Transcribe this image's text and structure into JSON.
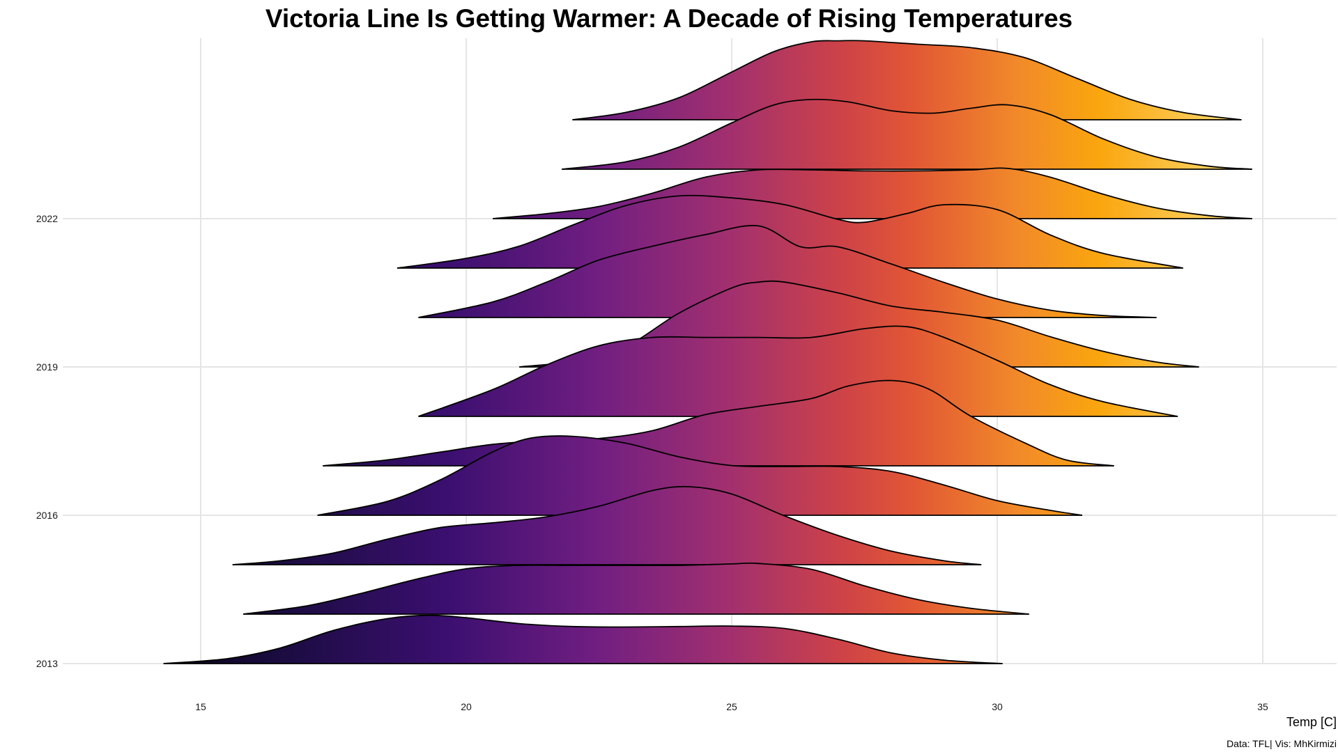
{
  "chart_data": {
    "type": "ridgeline",
    "title": "Victoria Line Is Getting Warmer: A Decade of Rising Temperatures",
    "xlabel": "Temp [C]",
    "ylabel": "",
    "caption": "Data: TFL| Vis: MhKirmizi",
    "xlim": [
      12.5,
      36.5
    ],
    "xticks": [
      15,
      20,
      25,
      30,
      35
    ],
    "ytick_labels": [
      {
        "label": "2013",
        "index": 0
      },
      {
        "label": "2016",
        "index": 3
      },
      {
        "label": "2019",
        "index": 6
      },
      {
        "label": "2022",
        "index": 9
      }
    ],
    "color_scale": "inferno (by temperature)",
    "grid": true,
    "ridges": [
      {
        "index": 0,
        "x": [
          14.3,
          15.5,
          16.5,
          17.5,
          18.5,
          19.3,
          20.0,
          21.0,
          22.0,
          23.0,
          24.0,
          25.0,
          26.0,
          27.0,
          28.0,
          29.0,
          30.1
        ],
        "y": [
          0.0,
          0.1,
          0.32,
          0.68,
          0.92,
          0.99,
          0.94,
          0.82,
          0.76,
          0.75,
          0.76,
          0.77,
          0.72,
          0.5,
          0.22,
          0.07,
          0.0
        ]
      },
      {
        "index": 1,
        "x": [
          15.8,
          17.0,
          18.0,
          19.0,
          20.0,
          21.0,
          22.0,
          23.0,
          24.0,
          25.0,
          25.5,
          26.5,
          27.5,
          28.5,
          29.5,
          30.6
        ],
        "y": [
          0.0,
          0.17,
          0.42,
          0.7,
          0.93,
          1.0,
          1.0,
          1.0,
          1.0,
          1.03,
          1.04,
          0.92,
          0.58,
          0.3,
          0.12,
          0.0
        ]
      },
      {
        "index": 2,
        "x": [
          15.6,
          16.5,
          17.5,
          18.5,
          19.5,
          20.5,
          21.5,
          22.5,
          23.5,
          24.2,
          25.0,
          26.0,
          27.0,
          28.0,
          29.0,
          29.7
        ],
        "y": [
          0.0,
          0.08,
          0.24,
          0.52,
          0.76,
          0.86,
          0.98,
          1.2,
          1.52,
          1.6,
          1.45,
          1.0,
          0.6,
          0.28,
          0.08,
          0.0
        ]
      },
      {
        "index": 3,
        "x": [
          17.2,
          18.5,
          19.5,
          20.5,
          21.2,
          22.0,
          23.0,
          24.0,
          25.0,
          26.0,
          27.0,
          28.0,
          29.0,
          30.0,
          31.0,
          31.6
        ],
        "y": [
          0.0,
          0.28,
          0.72,
          1.3,
          1.58,
          1.62,
          1.48,
          1.2,
          1.02,
          1.0,
          1.0,
          0.9,
          0.62,
          0.3,
          0.1,
          0.0
        ]
      },
      {
        "index": 4,
        "x": [
          17.3,
          18.5,
          19.5,
          20.5,
          21.5,
          22.5,
          23.5,
          24.5,
          25.5,
          26.5,
          27.2,
          28.0,
          28.7,
          29.5,
          30.5,
          31.3,
          32.2
        ],
        "y": [
          0.0,
          0.12,
          0.28,
          0.44,
          0.52,
          0.56,
          0.72,
          1.05,
          1.22,
          1.38,
          1.64,
          1.75,
          1.58,
          1.02,
          0.48,
          0.12,
          0.0
        ]
      },
      {
        "index": 5,
        "x": [
          19.1,
          20.5,
          21.5,
          22.5,
          23.5,
          24.5,
          25.5,
          26.5,
          27.5,
          28.3,
          29.0,
          30.0,
          31.0,
          32.0,
          33.4
        ],
        "y": [
          0.0,
          0.55,
          1.05,
          1.45,
          1.62,
          1.62,
          1.62,
          1.62,
          1.8,
          1.84,
          1.62,
          1.15,
          0.65,
          0.3,
          0.0
        ]
      },
      {
        "index": 6,
        "x": [
          21.0,
          22.0,
          23.0,
          24.0,
          25.0,
          25.5,
          26.0,
          27.0,
          28.0,
          29.0,
          30.0,
          31.0,
          32.0,
          33.0,
          33.8
        ],
        "y": [
          0.0,
          0.12,
          0.42,
          1.1,
          1.62,
          1.74,
          1.74,
          1.52,
          1.25,
          1.12,
          0.96,
          0.62,
          0.32,
          0.1,
          0.0
        ]
      },
      {
        "index": 7,
        "x": [
          19.1,
          20.5,
          21.5,
          22.5,
          23.5,
          24.5,
          25.5,
          26.3,
          27.0,
          28.0,
          29.0,
          30.0,
          31.0,
          32.0,
          33.0
        ],
        "y": [
          0.0,
          0.32,
          0.72,
          1.18,
          1.46,
          1.7,
          1.88,
          1.45,
          1.45,
          1.1,
          0.72,
          0.38,
          0.15,
          0.04,
          0.0
        ]
      },
      {
        "index": 8,
        "x": [
          18.7,
          20.0,
          21.0,
          22.0,
          23.0,
          24.0,
          25.0,
          26.0,
          27.0,
          27.5,
          28.3,
          29.0,
          30.0,
          31.0,
          32.0,
          33.5
        ],
        "y": [
          0.0,
          0.2,
          0.45,
          0.88,
          1.28,
          1.48,
          1.44,
          1.3,
          1.0,
          0.94,
          1.12,
          1.3,
          1.2,
          0.68,
          0.3,
          0.0
        ]
      },
      {
        "index": 9,
        "x": [
          20.5,
          21.5,
          22.5,
          23.5,
          24.5,
          25.5,
          26.5,
          27.5,
          28.5,
          29.5,
          30.2,
          31.0,
          32.0,
          33.0,
          34.0,
          34.8
        ],
        "y": [
          0.0,
          0.1,
          0.25,
          0.52,
          0.85,
          1.0,
          1.0,
          0.98,
          0.98,
          1.0,
          1.03,
          0.85,
          0.5,
          0.22,
          0.06,
          0.0
        ]
      },
      {
        "index": 10,
        "x": [
          21.8,
          23.0,
          24.0,
          25.0,
          25.8,
          26.5,
          27.2,
          28.0,
          28.8,
          29.5,
          30.2,
          31.0,
          32.0,
          33.0,
          34.0,
          34.8
        ],
        "y": [
          0.0,
          0.15,
          0.45,
          0.95,
          1.32,
          1.43,
          1.38,
          1.2,
          1.15,
          1.25,
          1.32,
          1.12,
          0.62,
          0.25,
          0.06,
          0.0
        ]
      },
      {
        "index": 11,
        "x": [
          22.0,
          23.0,
          24.0,
          25.0,
          25.8,
          26.5,
          27.0,
          27.5,
          28.5,
          29.5,
          30.5,
          31.5,
          32.5,
          33.5,
          34.6
        ],
        "y": [
          0.0,
          0.15,
          0.45,
          0.98,
          1.4,
          1.6,
          1.62,
          1.62,
          1.55,
          1.48,
          1.28,
          0.85,
          0.42,
          0.15,
          0.0
        ]
      }
    ]
  }
}
